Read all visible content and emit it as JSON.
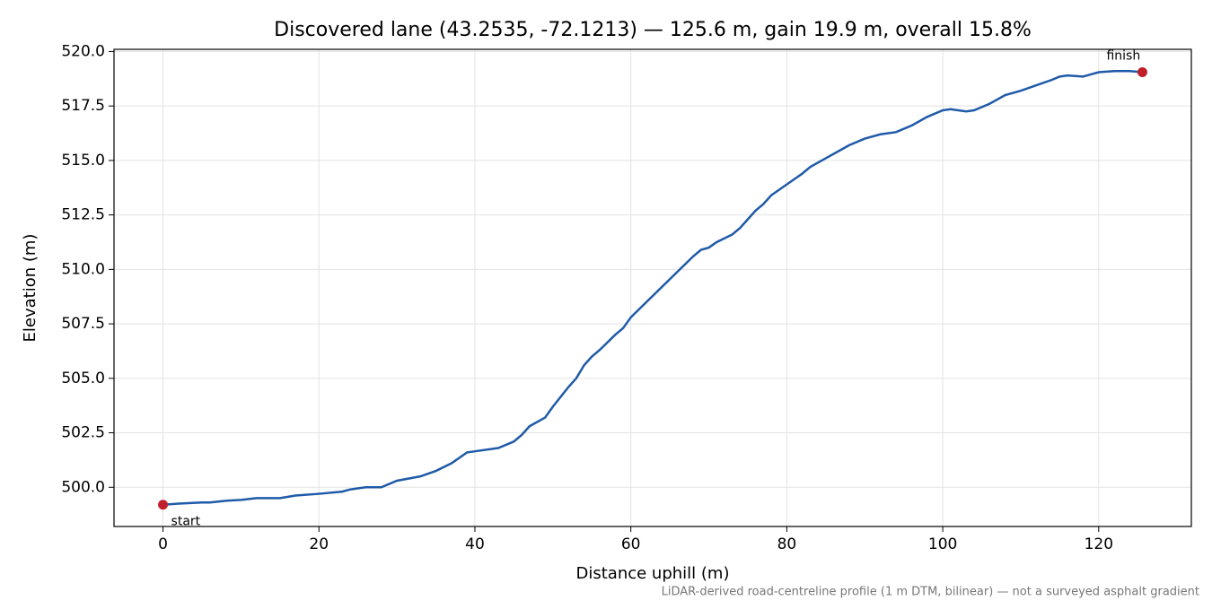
{
  "chart_data": {
    "type": "line",
    "title": "Discovered lane (43.2535, -72.1213) — 125.6 m, gain 19.9 m, overall 15.8%",
    "xlabel": "Distance uphill (m)",
    "ylabel": "Elevation (m)",
    "footnote": "LiDAR-derived road-centreline profile (1 m DTM, bilinear) — not a surveyed asphalt gradient",
    "x": [
      0,
      2,
      5,
      6,
      8,
      10,
      12,
      15,
      17,
      20,
      23,
      24,
      26,
      28,
      30,
      33,
      35,
      37,
      39,
      40,
      43,
      45,
      46,
      47,
      49,
      50,
      52,
      53,
      54,
      55,
      56,
      58,
      59,
      60,
      62,
      64,
      66,
      68,
      69,
      70,
      71,
      73,
      74,
      75,
      76,
      77,
      78,
      80,
      82,
      83,
      85,
      87,
      88,
      90,
      92,
      94,
      96,
      98,
      100,
      101,
      103,
      104,
      106,
      108,
      110,
      112,
      114,
      115,
      116,
      118,
      119,
      120,
      122,
      124,
      125.6
    ],
    "series": [
      {
        "color": "#1f5aa8",
        "values": [
          499.2,
          499.25,
          499.3,
          499.3,
          499.38,
          499.42,
          499.5,
          499.5,
          499.62,
          499.7,
          499.8,
          499.9,
          500.0,
          500.0,
          500.3,
          500.5,
          500.75,
          501.1,
          501.6,
          501.65,
          501.8,
          502.1,
          502.4,
          502.8,
          503.2,
          503.7,
          504.6,
          505.0,
          505.6,
          506.0,
          506.3,
          507.0,
          507.3,
          507.8,
          508.5,
          509.2,
          509.9,
          510.6,
          510.9,
          511.0,
          511.25,
          511.6,
          511.9,
          512.3,
          512.7,
          513.0,
          513.4,
          513.9,
          514.4,
          514.7,
          515.1,
          515.5,
          515.7,
          516.0,
          516.2,
          516.3,
          516.6,
          517.0,
          517.3,
          517.35,
          517.25,
          517.3,
          517.6,
          518.0,
          518.2,
          518.45,
          518.7,
          518.85,
          518.9,
          518.85,
          518.95,
          519.05,
          519.1,
          519.1,
          519.05
        ]
      }
    ],
    "markers": [
      {
        "label": "start",
        "x": 0,
        "y": 499.2,
        "color": "#c0202a"
      },
      {
        "label": "finish",
        "x": 125.6,
        "y": 519.05,
        "color": "#c0202a"
      }
    ],
    "xlim": [
      -6.28,
      131.88
    ],
    "ylim": [
      498.2,
      520.1
    ],
    "xticks": [
      0,
      20,
      40,
      60,
      80,
      100,
      120
    ],
    "yticks": [
      {
        "value": 500,
        "label": "500.0"
      },
      502.5,
      {
        "value": 505,
        "label": "505.0"
      },
      507.5,
      {
        "value": 510,
        "label": "510.0"
      },
      512.5,
      {
        "value": 515,
        "label": "515.0"
      },
      517.5,
      {
        "value": 520,
        "label": "520.0"
      }
    ],
    "grid": true
  }
}
